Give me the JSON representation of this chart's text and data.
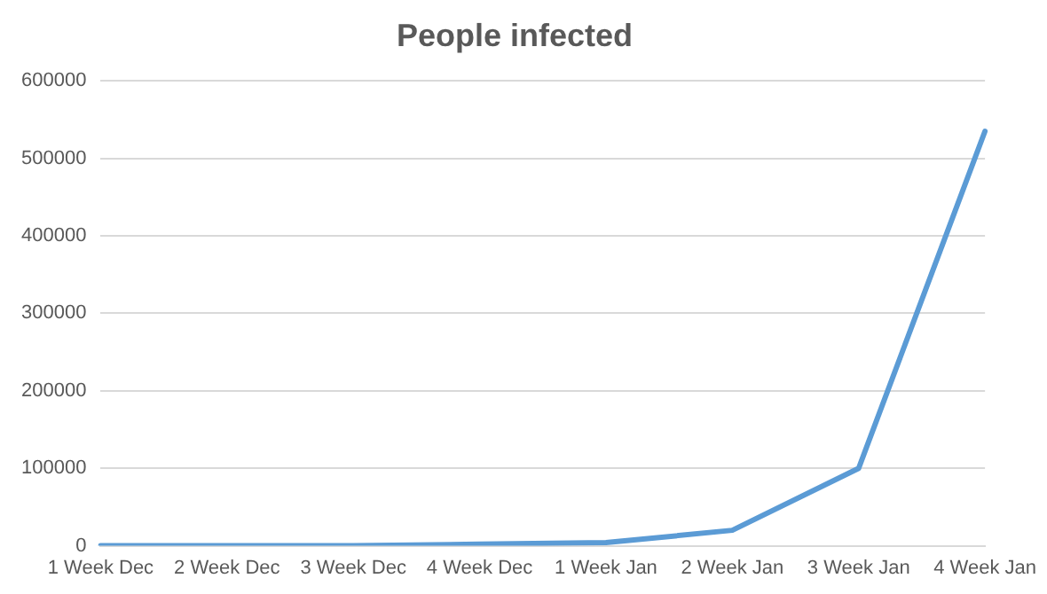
{
  "chart_data": {
    "type": "line",
    "title": "People infected",
    "categories": [
      "1 Week Dec",
      "2 Week Dec",
      "3 Week Dec",
      "4 Week Dec",
      "1 Week Jan",
      "2 Week Jan",
      "3 Week Jan",
      "4 Week Jan"
    ],
    "series": [
      {
        "color": "#5b9bd5",
        "values": [
          0,
          0,
          0,
          2000,
          4000,
          20000,
          100000,
          535000
        ]
      }
    ],
    "ylim": [
      0,
      600000
    ],
    "yticks": [
      0,
      100000,
      200000,
      300000,
      400000,
      500000,
      600000
    ],
    "grid": "y",
    "legend": false,
    "marker": "none",
    "line_style": "solid"
  }
}
